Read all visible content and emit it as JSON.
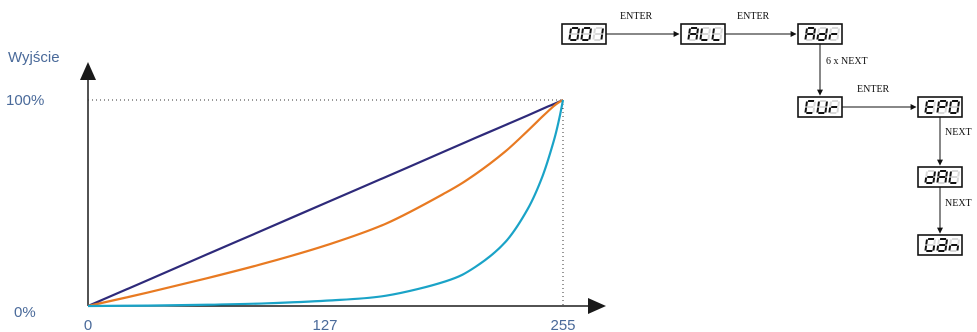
{
  "chart": {
    "y_axis_title": "Wyjście",
    "y_ticks": [
      "100%",
      "0%"
    ],
    "x_ticks": [
      "0",
      "127",
      "255"
    ]
  },
  "chart_data": {
    "type": "line",
    "xlim": [
      0,
      255
    ],
    "ylim": [
      0,
      100
    ],
    "x": [
      0,
      32,
      64,
      96,
      128,
      160,
      192,
      208,
      224,
      236,
      244,
      250,
      253,
      255
    ],
    "series": [
      {
        "color": "#2e2a7a",
        "values": [
          0,
          12.5,
          25.1,
          37.6,
          50.2,
          62.7,
          75.3,
          81.6,
          87.8,
          92.5,
          95.7,
          98.0,
          99.2,
          100
        ]
      },
      {
        "color": "#e87a22",
        "values": [
          0,
          6.5,
          13.5,
          21.0,
          29.5,
          40.0,
          55.0,
          64.0,
          75.0,
          85.0,
          92.0,
          97.0,
          99.0,
          100
        ]
      },
      {
        "color": "#1aa3c7",
        "values": [
          0,
          0.2,
          0.6,
          1.3,
          2.6,
          5.0,
          12.0,
          19.0,
          31.0,
          47.0,
          63.0,
          80.0,
          91.0,
          100
        ]
      }
    ],
    "grid": false,
    "guides": {
      "x": 255,
      "y": 100,
      "style": "dotted"
    }
  },
  "menu": {
    "displays": {
      "d1": "001",
      "d2": "ALL",
      "d3": "Adr",
      "d4": "CUr",
      "d5": "EP0",
      "d6": "dAL",
      "d7": "Gan"
    },
    "labels": {
      "l1": "ENTER",
      "l2": "ENTER",
      "l3": "6 x NEXT",
      "l4": "ENTER",
      "l5": "NEXT",
      "l6": "NEXT"
    }
  }
}
